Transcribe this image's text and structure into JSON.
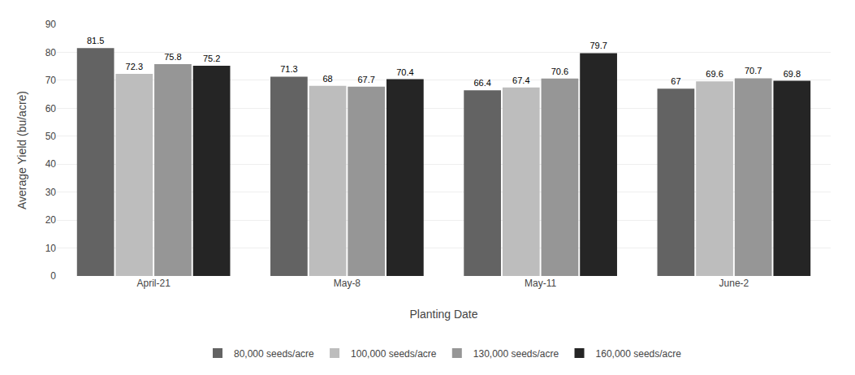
{
  "chart_data": {
    "type": "bar",
    "xlabel": "Planting Date",
    "ylabel": "Average Yield (bu/acre)",
    "categories": [
      "April-21",
      "May-8",
      "May-11",
      "June-2"
    ],
    "series": [
      {
        "name": "80,000 seeds/acre",
        "color": "#636363",
        "values": [
          81.5,
          71.3,
          66.4,
          67.0
        ]
      },
      {
        "name": "100,000 seeds/acre",
        "color": "#bdbdbd",
        "values": [
          72.3,
          68.0,
          67.4,
          69.6
        ]
      },
      {
        "name": "130,000 seeds/acre",
        "color": "#969696",
        "values": [
          75.8,
          67.7,
          70.6,
          70.7
        ]
      },
      {
        "name": "160,000 seeds/acre",
        "color": "#252525",
        "values": [
          75.2,
          70.4,
          79.7,
          69.8
        ]
      }
    ],
    "ylim": [
      0,
      90
    ],
    "yticks": [
      0,
      10,
      20,
      30,
      40,
      50,
      60,
      70,
      80,
      90
    ],
    "grid": "y",
    "data_labels": true,
    "legend": "bottom"
  }
}
